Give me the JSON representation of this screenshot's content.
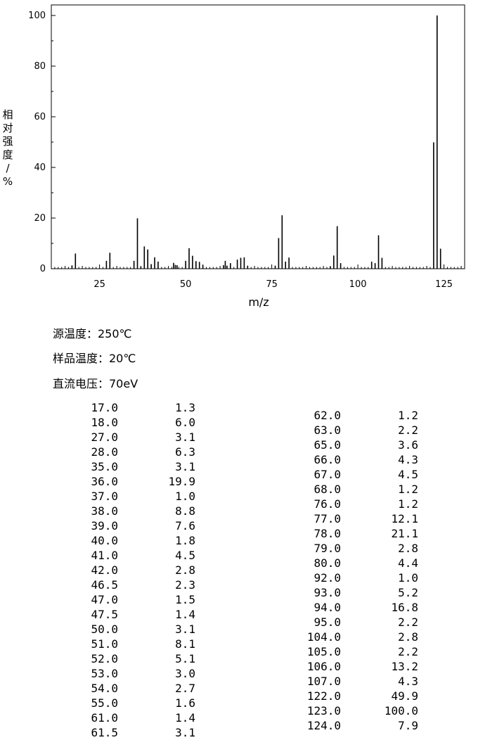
{
  "chart_data": {
    "type": "bar",
    "xlabel": "m/z",
    "ylabel": "相对强度/%",
    "xlim": [
      11,
      131
    ],
    "ylim": [
      0,
      100
    ],
    "x_ticks": [
      25,
      50,
      75,
      100,
      125
    ],
    "y_ticks": [
      0,
      20,
      40,
      60,
      80,
      100
    ],
    "x_tick_labels": [
      "25",
      "50",
      "75",
      "100",
      "125"
    ],
    "y_tick_labels": [
      "0",
      "20",
      "40",
      "60",
      "80",
      "100"
    ],
    "grid": false,
    "peaks": [
      {
        "mz": 17.0,
        "intensity": 1.3
      },
      {
        "mz": 18.0,
        "intensity": 6.0
      },
      {
        "mz": 27.0,
        "intensity": 3.1
      },
      {
        "mz": 28.0,
        "intensity": 6.3
      },
      {
        "mz": 35.0,
        "intensity": 3.1
      },
      {
        "mz": 36.0,
        "intensity": 19.9
      },
      {
        "mz": 37.0,
        "intensity": 1.0
      },
      {
        "mz": 38.0,
        "intensity": 8.8
      },
      {
        "mz": 39.0,
        "intensity": 7.6
      },
      {
        "mz": 40.0,
        "intensity": 1.8
      },
      {
        "mz": 41.0,
        "intensity": 4.5
      },
      {
        "mz": 42.0,
        "intensity": 2.8
      },
      {
        "mz": 46.5,
        "intensity": 2.3
      },
      {
        "mz": 47.0,
        "intensity": 1.5
      },
      {
        "mz": 47.5,
        "intensity": 1.4
      },
      {
        "mz": 50.0,
        "intensity": 3.1
      },
      {
        "mz": 51.0,
        "intensity": 8.1
      },
      {
        "mz": 52.0,
        "intensity": 5.1
      },
      {
        "mz": 53.0,
        "intensity": 3.0
      },
      {
        "mz": 54.0,
        "intensity": 2.7
      },
      {
        "mz": 55.0,
        "intensity": 1.6
      },
      {
        "mz": 61.0,
        "intensity": 1.4
      },
      {
        "mz": 61.5,
        "intensity": 3.1
      },
      {
        "mz": 62.0,
        "intensity": 1.2
      },
      {
        "mz": 63.0,
        "intensity": 2.2
      },
      {
        "mz": 65.0,
        "intensity": 3.6
      },
      {
        "mz": 66.0,
        "intensity": 4.3
      },
      {
        "mz": 67.0,
        "intensity": 4.5
      },
      {
        "mz": 68.0,
        "intensity": 1.2
      },
      {
        "mz": 76.0,
        "intensity": 1.2
      },
      {
        "mz": 77.0,
        "intensity": 12.1
      },
      {
        "mz": 78.0,
        "intensity": 21.1
      },
      {
        "mz": 79.0,
        "intensity": 2.8
      },
      {
        "mz": 80.0,
        "intensity": 4.4
      },
      {
        "mz": 92.0,
        "intensity": 1.0
      },
      {
        "mz": 93.0,
        "intensity": 5.2
      },
      {
        "mz": 94.0,
        "intensity": 16.8
      },
      {
        "mz": 95.0,
        "intensity": 2.2
      },
      {
        "mz": 104.0,
        "intensity": 2.8
      },
      {
        "mz": 105.0,
        "intensity": 2.2
      },
      {
        "mz": 106.0,
        "intensity": 13.2
      },
      {
        "mz": 107.0,
        "intensity": 4.3
      },
      {
        "mz": 122.0,
        "intensity": 49.9
      },
      {
        "mz": 123.0,
        "intensity": 100.0
      },
      {
        "mz": 124.0,
        "intensity": 7.9
      }
    ]
  },
  "conditions": {
    "source_temp": "源温度：250℃",
    "sample_temp": "样品温度：20℃",
    "dc_voltage": "直流电压：70eV"
  },
  "table": {
    "left": [
      [
        "17.0",
        "1.3"
      ],
      [
        "18.0",
        "6.0"
      ],
      [
        "27.0",
        "3.1"
      ],
      [
        "28.0",
        "6.3"
      ],
      [
        "35.0",
        "3.1"
      ],
      [
        "36.0",
        "19.9"
      ],
      [
        "37.0",
        "1.0"
      ],
      [
        "38.0",
        "8.8"
      ],
      [
        "39.0",
        "7.6"
      ],
      [
        "40.0",
        "1.8"
      ],
      [
        "41.0",
        "4.5"
      ],
      [
        "42.0",
        "2.8"
      ],
      [
        "46.5",
        "2.3"
      ],
      [
        "47.0",
        "1.5"
      ],
      [
        "47.5",
        "1.4"
      ],
      [
        "50.0",
        "3.1"
      ],
      [
        "51.0",
        "8.1"
      ],
      [
        "52.0",
        "5.1"
      ],
      [
        "53.0",
        "3.0"
      ],
      [
        "54.0",
        "2.7"
      ],
      [
        "55.0",
        "1.6"
      ],
      [
        "61.0",
        "1.4"
      ],
      [
        "61.5",
        "3.1"
      ]
    ],
    "right": [
      [
        "62.0",
        "1.2"
      ],
      [
        "63.0",
        "2.2"
      ],
      [
        "65.0",
        "3.6"
      ],
      [
        "66.0",
        "4.3"
      ],
      [
        "67.0",
        "4.5"
      ],
      [
        "68.0",
        "1.2"
      ],
      [
        "76.0",
        "1.2"
      ],
      [
        "77.0",
        "12.1"
      ],
      [
        "78.0",
        "21.1"
      ],
      [
        "79.0",
        "2.8"
      ],
      [
        "80.0",
        "4.4"
      ],
      [
        "92.0",
        "1.0"
      ],
      [
        "93.0",
        "5.2"
      ],
      [
        "94.0",
        "16.8"
      ],
      [
        "95.0",
        "2.2"
      ],
      [
        "104.0",
        "2.8"
      ],
      [
        "105.0",
        "2.2"
      ],
      [
        "106.0",
        "13.2"
      ],
      [
        "107.0",
        "4.3"
      ],
      [
        "122.0",
        "49.9"
      ],
      [
        "123.0",
        "100.0"
      ],
      [
        "124.0",
        "7.9"
      ]
    ]
  }
}
